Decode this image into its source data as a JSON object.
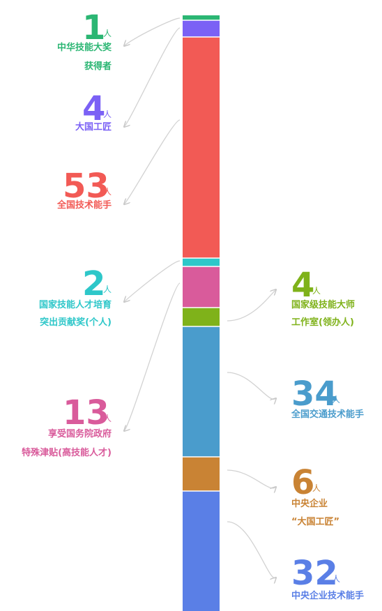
{
  "chart_data": {
    "type": "bar",
    "stacked": true,
    "orientation": "vertical",
    "unit": "人",
    "legend": "callouts-left-and-right",
    "segments": [
      {
        "value": 1,
        "label": [
          "中华技能大奖",
          "获得者"
        ],
        "color": "#2bb673",
        "side": "left"
      },
      {
        "value": 4,
        "label": [
          "大国工匠"
        ],
        "color": "#7b61f5",
        "side": "left"
      },
      {
        "value": 53,
        "label": [
          "全国技术能手"
        ],
        "color": "#f25a55",
        "side": "left"
      },
      {
        "value": 2,
        "label": [
          "国家技能人才培育",
          "突出贡献奖(个人)"
        ],
        "color": "#2ec7c9",
        "side": "left"
      },
      {
        "value": 13,
        "label": [
          "享受国务院政府",
          "特殊津贴(高技能人才)"
        ],
        "color": "#d95b9b",
        "side": "left"
      },
      {
        "value": 4,
        "label": [
          "国家级技能大师",
          "工作室(领办人)"
        ],
        "color": "#7fb21a",
        "side": "right"
      },
      {
        "value": 34,
        "label": [
          "全国交通技术能手"
        ],
        "color": "#4a9ccc",
        "side": "right"
      },
      {
        "value": 6,
        "label": [
          "中央企业",
          "“大国工匠”"
        ],
        "color": "#c98334",
        "side": "right"
      },
      {
        "value": 32,
        "label": [
          "中央企业技术能手"
        ],
        "color": "#5a7fe6",
        "side": "right"
      }
    ]
  }
}
